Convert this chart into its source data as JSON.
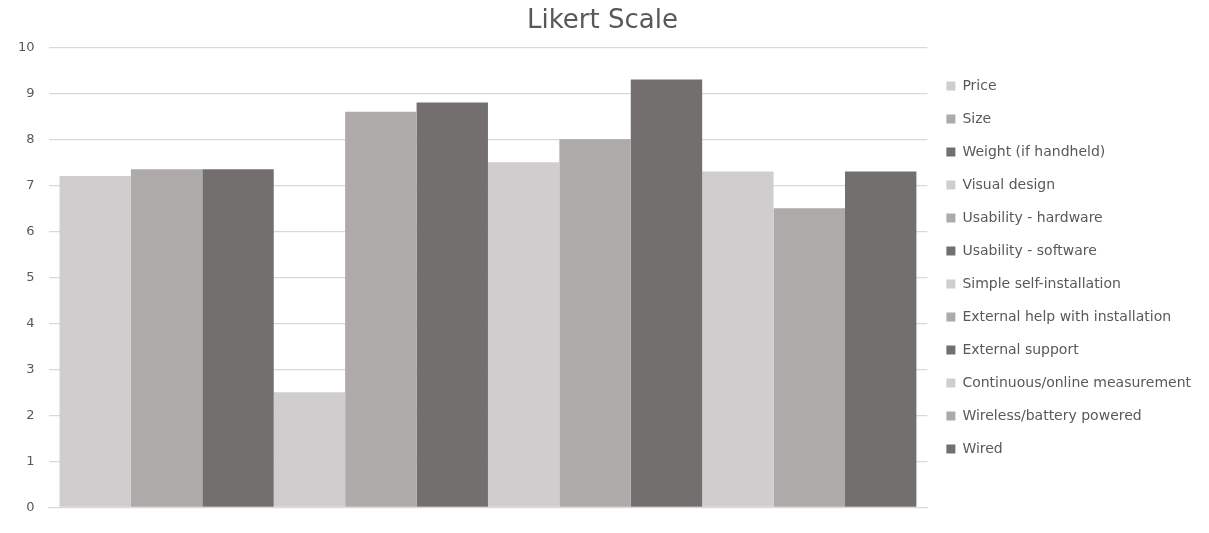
{
  "chart_data": {
    "type": "bar",
    "title": "Likert Scale",
    "categories": [
      null
    ],
    "series": [
      {
        "name": "Price",
        "color": "#cfcdce",
        "values": [
          7.2
        ]
      },
      {
        "name": "Size",
        "color": "#adaaa9",
        "values": [
          7.35
        ]
      },
      {
        "name": "Weight (if handheld)",
        "color": "#736f6e",
        "values": [
          7.35
        ]
      },
      {
        "name": "Visual design",
        "color": "#cfcdce",
        "values": [
          2.5
        ]
      },
      {
        "name": "Usability - hardware",
        "color": "#adaaa9",
        "values": [
          8.6
        ]
      },
      {
        "name": "Usability - software",
        "color": "#736f6e",
        "values": [
          8.8
        ]
      },
      {
        "name": "Simple self-installation",
        "color": "#cfcdce",
        "values": [
          7.5
        ]
      },
      {
        "name": "External help with installation",
        "color": "#adaaa9",
        "values": [
          8.0
        ]
      },
      {
        "name": "External support",
        "color": "#736f6e",
        "values": [
          9.3
        ]
      },
      {
        "name": "Continuous/online measurement",
        "color": "#cfcdce",
        "values": [
          7.3
        ]
      },
      {
        "name": "Wireless/battery powered",
        "color": "#adaaa9",
        "values": [
          6.5
        ]
      },
      {
        "name": "Wired",
        "color": "#736f6e",
        "values": [
          7.3
        ]
      }
    ],
    "ylim": [
      0,
      10
    ],
    "yticks": [
      0,
      1,
      2,
      3,
      4,
      5,
      6,
      7,
      8,
      9,
      10
    ],
    "grid": "y",
    "legend": "right"
  }
}
